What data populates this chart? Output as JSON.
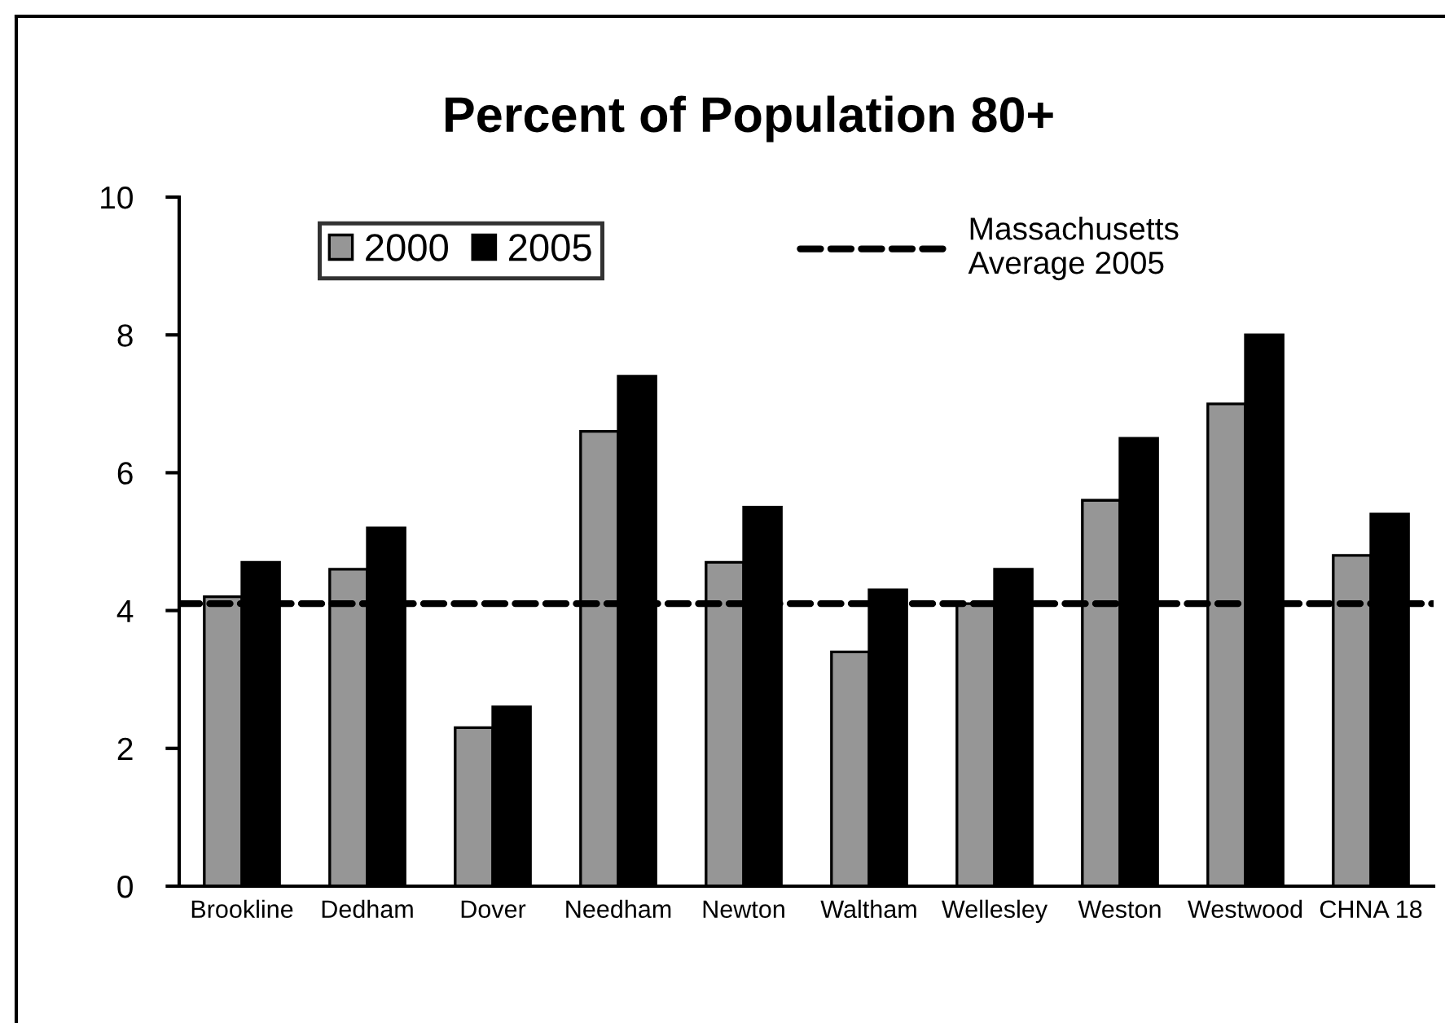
{
  "chart_data": {
    "type": "bar",
    "title": "Percent of Population 80+",
    "categories": [
      "Brookline",
      "Dedham",
      "Dover",
      "Needham",
      "Newton",
      "Waltham",
      "Wellesley",
      "Weston",
      "Westwood",
      "CHNA 18"
    ],
    "series": [
      {
        "name": "2000",
        "color": "#969696",
        "values": [
          4.2,
          4.6,
          2.3,
          6.6,
          4.7,
          3.4,
          4.1,
          5.6,
          7.0,
          4.8
        ]
      },
      {
        "name": "2005",
        "color": "#000000",
        "values": [
          4.7,
          5.2,
          2.6,
          7.4,
          5.5,
          4.3,
          4.6,
          6.5,
          8.0,
          5.4
        ]
      }
    ],
    "ylim": [
      0,
      10
    ],
    "yticks": [
      0,
      2,
      4,
      6,
      8,
      10
    ],
    "grid": false,
    "legend": "top left",
    "ref_lines": [
      {
        "axis": "y",
        "value": 4.1,
        "label": "Massachusetts\nAverage 2005",
        "color": "#000000",
        "line_style": "dashed"
      }
    ]
  }
}
